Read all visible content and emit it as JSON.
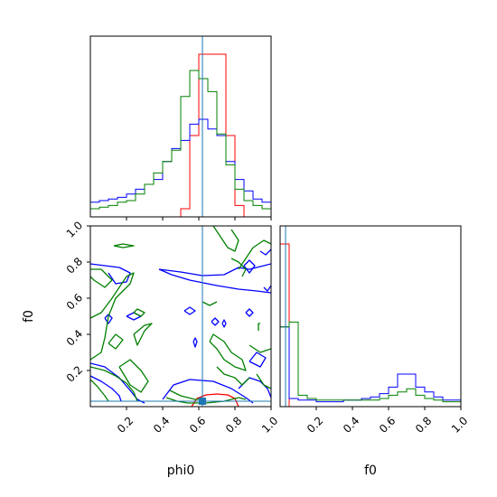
{
  "chart_data": {
    "type": "corner",
    "parameters": [
      "phi0",
      "f0"
    ],
    "x_tick_labels": [
      "0.2",
      "0.4",
      "0.6",
      "0.8",
      "1.0"
    ],
    "y_tick_labels": [
      "0.2",
      "0.4",
      "0.6",
      "0.8",
      "1.0"
    ],
    "xlim": [
      0,
      1
    ],
    "ylim": [
      0,
      1
    ],
    "truth": {
      "phi0": 0.62,
      "f0": 0.03,
      "color": "#1f77b4"
    },
    "series": [
      {
        "color": "#ff0000"
      },
      {
        "color": "#0000ff"
      },
      {
        "color": "#008000"
      }
    ],
    "histograms": {
      "phi0": {
        "bin_edges": [
          0.0,
          0.05,
          0.1,
          0.15,
          0.2,
          0.25,
          0.3,
          0.35,
          0.4,
          0.45,
          0.5,
          0.55,
          0.6,
          0.65,
          0.7,
          0.75,
          0.8,
          0.85,
          0.9,
          0.95,
          1.0
        ],
        "counts": [
          [
            0,
            0,
            0,
            0,
            0,
            0,
            0,
            0,
            0,
            0,
            0.05,
            0.5,
            1.0,
            1.0,
            1.0,
            0.5,
            0.07,
            0,
            0,
            0
          ],
          [
            0.09,
            0.1,
            0.11,
            0.12,
            0.14,
            0.17,
            0.2,
            0.23,
            0.34,
            0.42,
            0.47,
            0.57,
            0.6,
            0.54,
            0.5,
            0.34,
            0.23,
            0.16,
            0.11,
            0.09
          ],
          [
            0.05,
            0.06,
            0.07,
            0.09,
            0.1,
            0.14,
            0.2,
            0.27,
            0.34,
            0.41,
            0.74,
            0.9,
            0.85,
            0.77,
            0.51,
            0.32,
            0.17,
            0.1,
            0.07,
            0.05
          ]
        ]
      },
      "f0": {
        "bin_edges": [
          0.0,
          0.05,
          0.1,
          0.15,
          0.2,
          0.25,
          0.3,
          0.35,
          0.4,
          0.45,
          0.5,
          0.55,
          0.6,
          0.65,
          0.7,
          0.75,
          0.8,
          0.85,
          0.9,
          0.95,
          1.0
        ],
        "counts": [
          [
            1.0,
            0,
            0,
            0,
            0,
            0,
            0,
            0,
            0,
            0,
            0,
            0,
            0,
            0,
            0,
            0,
            0,
            0,
            0,
            0
          ],
          [
            0.49,
            0.05,
            0.04,
            0.04,
            0.03,
            0.03,
            0.03,
            0.04,
            0.04,
            0.05,
            0.06,
            0.08,
            0.12,
            0.2,
            0.2,
            0.12,
            0.09,
            0.06,
            0.04,
            0.04
          ],
          [
            0.49,
            0.52,
            0.07,
            0.05,
            0.04,
            0.04,
            0.04,
            0.04,
            0.04,
            0.04,
            0.04,
            0.05,
            0.07,
            0.09,
            0.11,
            0.07,
            0.05,
            0.04,
            0.03,
            0.03
          ]
        ]
      }
    },
    "contours": [
      {
        "color": "#ff0000",
        "lines": [
          [
            [
              0.56,
              0.0
            ],
            [
              0.59,
              0.045
            ],
            [
              0.64,
              0.065
            ],
            [
              0.7,
              0.07
            ],
            [
              0.76,
              0.065
            ],
            [
              0.8,
              0.045
            ],
            [
              0.82,
              0.0
            ]
          ]
        ]
      },
      {
        "color": "#0000ff",
        "lines": [
          [
            [
              0.38,
              0.76
            ],
            [
              0.5,
              0.745
            ],
            [
              0.62,
              0.725
            ],
            [
              0.74,
              0.73
            ],
            [
              0.82,
              0.77
            ],
            [
              0.88,
              0.76
            ],
            [
              1.0,
              0.79
            ]
          ],
          [
            [
              0.38,
              0.76
            ],
            [
              0.45,
              0.73
            ],
            [
              0.55,
              0.7
            ],
            [
              0.7,
              0.67
            ],
            [
              0.82,
              0.65
            ],
            [
              0.92,
              0.64
            ],
            [
              1.0,
              0.63
            ]
          ],
          [
            [
              0.0,
              0.24
            ],
            [
              0.08,
              0.22
            ],
            [
              0.16,
              0.16
            ],
            [
              0.22,
              0.09
            ],
            [
              0.26,
              0.04
            ],
            [
              0.3,
              0.02
            ]
          ],
          [
            [
              0.0,
              0.17
            ],
            [
              0.06,
              0.14
            ],
            [
              0.12,
              0.1
            ],
            [
              0.16,
              0.06
            ],
            [
              0.17,
              0.03
            ]
          ],
          [
            [
              0.4,
              0.04
            ],
            [
              0.46,
              0.12
            ],
            [
              0.55,
              0.15
            ],
            [
              0.68,
              0.14
            ],
            [
              0.78,
              0.1
            ],
            [
              0.86,
              0.05
            ],
            [
              0.9,
              0.02
            ]
          ],
          [
            [
              0.0,
              0.79
            ],
            [
              0.08,
              0.78
            ],
            [
              0.16,
              0.77
            ],
            [
              0.22,
              0.74
            ],
            [
              0.2,
              0.69
            ],
            [
              0.14,
              0.68
            ],
            [
              0.1,
              0.74
            ]
          ],
          [
            [
              0.2,
              0.5
            ],
            [
              0.24,
              0.48
            ],
            [
              0.28,
              0.5
            ],
            [
              0.24,
              0.52
            ],
            [
              0.2,
              0.5
            ]
          ],
          [
            [
              0.08,
              0.49
            ],
            [
              0.1,
              0.46
            ],
            [
              0.12,
              0.49
            ],
            [
              0.1,
              0.51
            ],
            [
              0.08,
              0.49
            ]
          ],
          [
            [
              0.52,
              0.53
            ],
            [
              0.55,
              0.51
            ],
            [
              0.58,
              0.53
            ],
            [
              0.55,
              0.55
            ],
            [
              0.52,
              0.53
            ]
          ],
          [
            [
              0.57,
              0.36
            ],
            [
              0.58,
              0.33
            ],
            [
              0.59,
              0.36
            ],
            [
              0.58,
              0.38
            ],
            [
              0.57,
              0.36
            ]
          ],
          [
            [
              0.67,
              0.47
            ],
            [
              0.69,
              0.45
            ],
            [
              0.71,
              0.47
            ],
            [
              0.69,
              0.49
            ],
            [
              0.67,
              0.47
            ]
          ],
          [
            [
              0.73,
              0.46
            ],
            [
              0.74,
              0.44
            ],
            [
              0.75,
              0.46
            ],
            [
              0.74,
              0.48
            ],
            [
              0.73,
              0.46
            ]
          ],
          [
            [
              0.86,
              0.52
            ],
            [
              0.88,
              0.5
            ],
            [
              0.9,
              0.52
            ],
            [
              0.88,
              0.54
            ],
            [
              0.86,
              0.52
            ]
          ],
          [
            [
              0.82,
              0.1
            ],
            [
              0.88,
              0.16
            ],
            [
              0.94,
              0.14
            ],
            [
              0.98,
              0.1
            ],
            [
              1.0,
              0.05
            ]
          ],
          [
            [
              0.88,
              0.25
            ],
            [
              0.94,
              0.22
            ],
            [
              0.97,
              0.27
            ],
            [
              0.92,
              0.3
            ],
            [
              0.88,
              0.25
            ]
          ],
          [
            [
              0.85,
              0.78
            ],
            [
              0.88,
              0.74
            ],
            [
              0.91,
              0.78
            ],
            [
              0.88,
              0.81
            ],
            [
              0.85,
              0.78
            ]
          ],
          [
            [
              0.94,
              0.86
            ],
            [
              0.97,
              0.84
            ],
            [
              1.0,
              0.87
            ]
          ],
          [
            [
              0.96,
              0.66
            ],
            [
              0.98,
              0.64
            ],
            [
              1.0,
              0.67
            ]
          ]
        ]
      },
      {
        "color": "#008000",
        "lines": [
          [
            [
              0.0,
              0.49
            ],
            [
              0.06,
              0.52
            ],
            [
              0.12,
              0.6
            ],
            [
              0.16,
              0.66
            ],
            [
              0.2,
              0.72
            ],
            [
              0.24,
              0.74
            ],
            [
              0.22,
              0.68
            ],
            [
              0.14,
              0.6
            ],
            [
              0.1,
              0.5
            ],
            [
              0.08,
              0.38
            ],
            [
              0.06,
              0.3
            ],
            [
              0.0,
              0.26
            ]
          ],
          [
            [
              0.0,
              0.76
            ],
            [
              0.06,
              0.76
            ],
            [
              0.12,
              0.7
            ],
            [
              0.08,
              0.66
            ],
            [
              0.02,
              0.7
            ],
            [
              0.0,
              0.72
            ]
          ],
          [
            [
              0.24,
              0.4
            ],
            [
              0.3,
              0.45
            ],
            [
              0.34,
              0.46
            ],
            [
              0.3,
              0.42
            ],
            [
              0.26,
              0.34
            ],
            [
              0.24,
              0.4
            ]
          ],
          [
            [
              0.1,
              0.35
            ],
            [
              0.14,
              0.4
            ],
            [
              0.18,
              0.37
            ],
            [
              0.14,
              0.32
            ],
            [
              0.1,
              0.35
            ]
          ],
          [
            [
              0.0,
              0.22
            ],
            [
              0.08,
              0.2
            ],
            [
              0.14,
              0.17
            ],
            [
              0.2,
              0.13
            ],
            [
              0.24,
              0.08
            ],
            [
              0.26,
              0.03
            ]
          ],
          [
            [
              0.0,
              0.15
            ],
            [
              0.04,
              0.11
            ],
            [
              0.08,
              0.06
            ],
            [
              0.1,
              0.03
            ]
          ],
          [
            [
              0.16,
              0.22
            ],
            [
              0.22,
              0.26
            ],
            [
              0.28,
              0.2
            ],
            [
              0.32,
              0.14
            ],
            [
              0.28,
              0.08
            ],
            [
              0.22,
              0.12
            ],
            [
              0.16,
              0.22
            ]
          ],
          [
            [
              0.44,
              0.09
            ],
            [
              0.5,
              0.06
            ],
            [
              0.58,
              0.04
            ],
            [
              0.64,
              0.045
            ]
          ],
          [
            [
              0.42,
              0.05
            ],
            [
              0.48,
              0.03
            ],
            [
              0.54,
              0.02
            ],
            [
              0.64,
              0.02
            ],
            [
              0.74,
              0.03
            ],
            [
              0.82,
              0.05
            ],
            [
              0.86,
              0.04
            ]
          ],
          [
            [
              0.66,
              0.36
            ],
            [
              0.7,
              0.32
            ],
            [
              0.74,
              0.26
            ],
            [
              0.8,
              0.22
            ],
            [
              0.86,
              0.2
            ],
            [
              0.84,
              0.26
            ],
            [
              0.78,
              0.3
            ],
            [
              0.74,
              0.36
            ],
            [
              0.68,
              0.4
            ],
            [
              0.66,
              0.36
            ]
          ],
          [
            [
              0.7,
              0.22
            ],
            [
              0.74,
              0.18
            ],
            [
              0.8,
              0.16
            ],
            [
              0.84,
              0.12
            ],
            [
              0.88,
              0.16
            ]
          ],
          [
            [
              0.88,
              0.34
            ],
            [
              0.94,
              0.3
            ],
            [
              1.0,
              0.32
            ]
          ],
          [
            [
              0.92,
              0.18
            ],
            [
              0.96,
              0.12
            ],
            [
              1.0,
              0.1
            ]
          ],
          [
            [
              0.68,
              1.0
            ],
            [
              0.72,
              0.94
            ],
            [
              0.76,
              0.88
            ],
            [
              0.8,
              0.86
            ],
            [
              0.82,
              0.92
            ],
            [
              0.78,
              0.98
            ]
          ],
          [
            [
              0.82,
              0.76
            ],
            [
              0.86,
              0.82
            ],
            [
              0.9,
              0.88
            ],
            [
              0.96,
              0.92
            ],
            [
              1.0,
              0.9
            ]
          ],
          [
            [
              0.78,
              0.82
            ],
            [
              0.82,
              0.8
            ],
            [
              0.86,
              0.76
            ],
            [
              0.84,
              0.72
            ]
          ],
          [
            [
              0.62,
              0.58
            ],
            [
              0.66,
              0.56
            ],
            [
              0.7,
              0.58
            ]
          ],
          [
            [
              0.13,
              0.89
            ],
            [
              0.18,
              0.88
            ],
            [
              0.24,
              0.89
            ],
            [
              0.18,
              0.9
            ],
            [
              0.13,
              0.89
            ]
          ],
          [
            [
              0.24,
              0.52
            ],
            [
              0.28,
              0.5
            ],
            [
              0.3,
              0.52
            ],
            [
              0.26,
              0.54
            ],
            [
              0.24,
              0.52
            ]
          ],
          [
            [
              0.93,
              0.42
            ],
            [
              0.93,
              0.46
            ],
            [
              0.94,
              0.46
            ]
          ]
        ]
      }
    ]
  }
}
